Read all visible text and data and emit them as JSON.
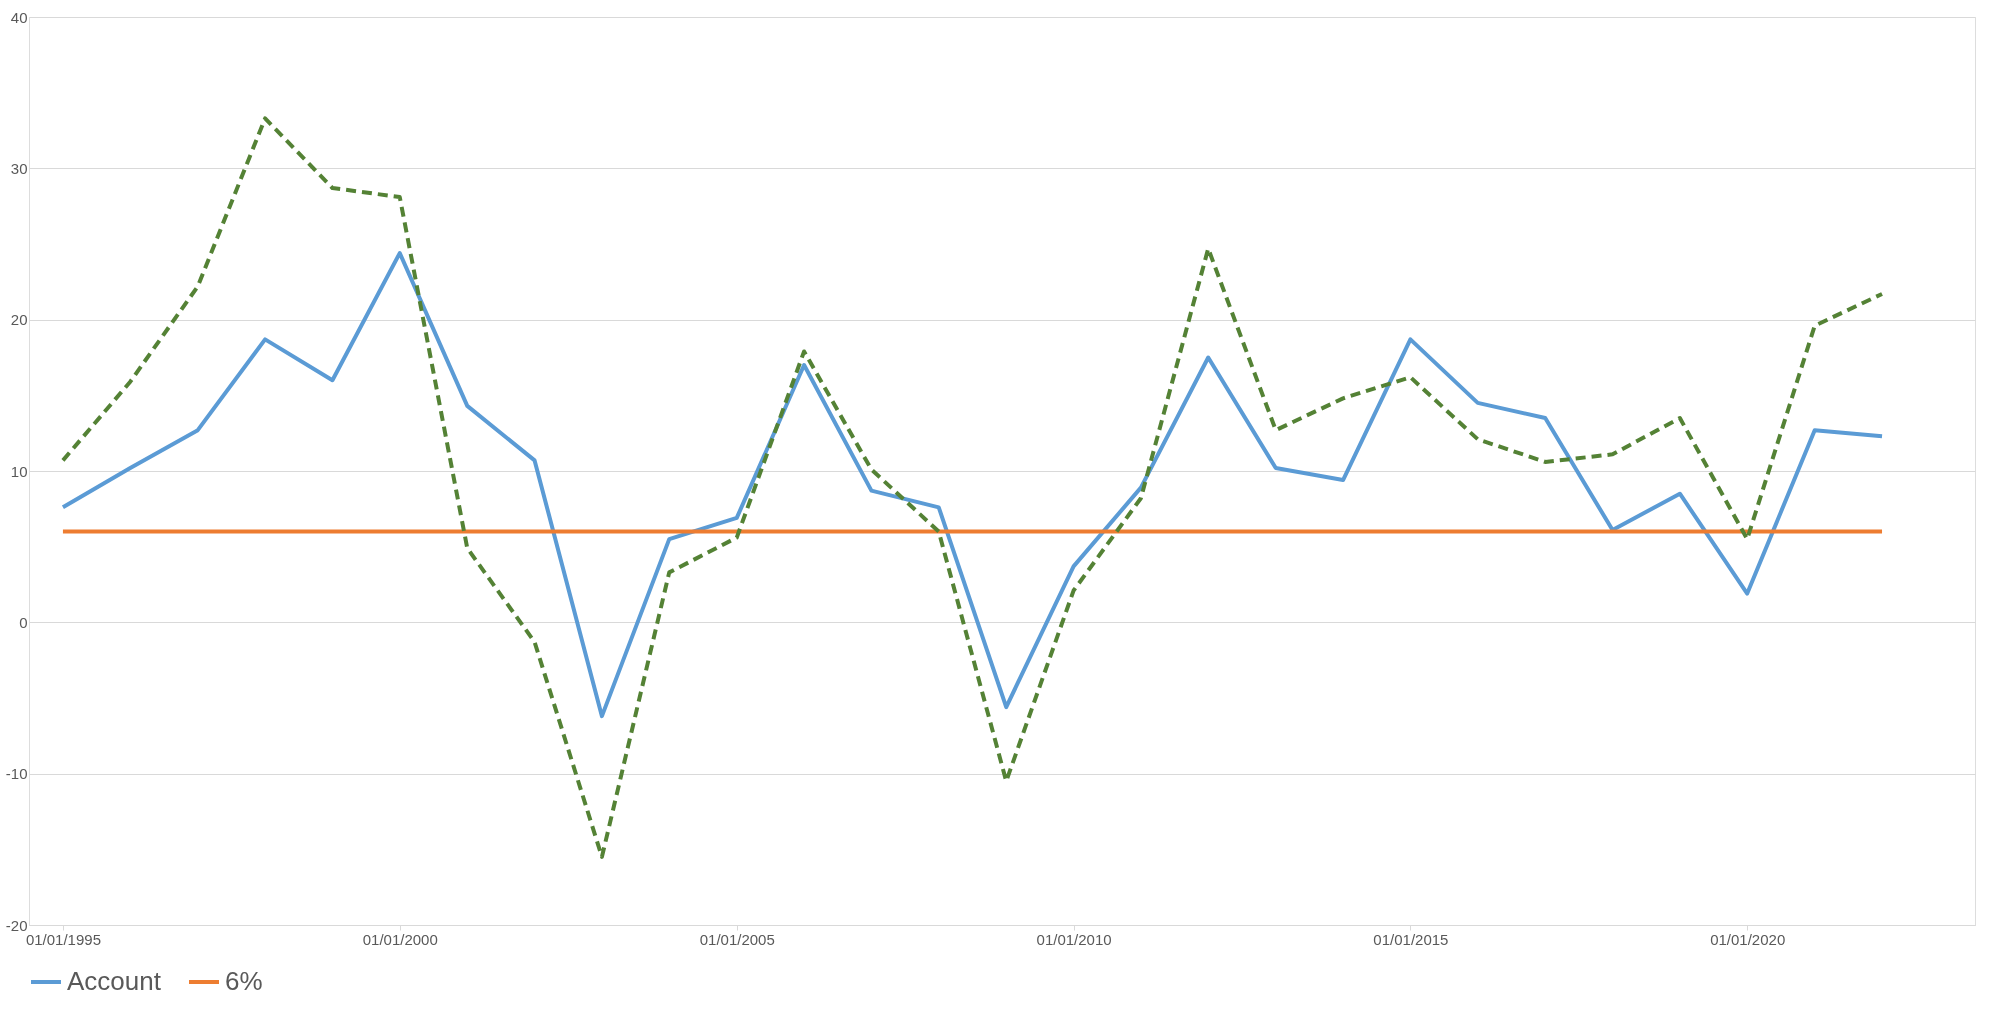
{
  "chart_data": {
    "type": "line",
    "x": [
      "1995-01-01",
      "1996-01-01",
      "1997-01-01",
      "1998-01-01",
      "1999-01-01",
      "2000-01-01",
      "2001-01-01",
      "2002-01-01",
      "2003-01-01",
      "2004-01-01",
      "2005-01-01",
      "2006-01-01",
      "2007-01-01",
      "2008-01-01",
      "2009-01-01",
      "2010-01-01",
      "2011-01-01",
      "2012-01-01",
      "2013-01-01",
      "2014-01-01",
      "2015-01-01",
      "2016-01-01",
      "2017-01-01",
      "2018-01-01",
      "2019-01-01",
      "2020-01-01",
      "2021-01-01",
      "2022-01-01"
    ],
    "series": [
      {
        "name": "Account",
        "color": "#5b9bd5",
        "line_style": "solid",
        "values": [
          7.6,
          10.2,
          12.7,
          18.7,
          16.0,
          24.4,
          14.3,
          10.7,
          -6.2,
          5.5,
          6.9,
          17.0,
          8.7,
          7.6,
          -5.6,
          3.7,
          8.9,
          17.5,
          10.2,
          9.4,
          18.7,
          14.5,
          13.5,
          6.1,
          8.5,
          1.9,
          12.7,
          12.3
        ]
      },
      {
        "name": "6%",
        "color": "#ed7d31",
        "line_style": "solid",
        "values": [
          6,
          6,
          6,
          6,
          6,
          6,
          6,
          6,
          6,
          6,
          6,
          6,
          6,
          6,
          6,
          6,
          6,
          6,
          6,
          6,
          6,
          6,
          6,
          6,
          6,
          6,
          6,
          6
        ]
      },
      {
        "color": "#548235",
        "line_style": "dashed",
        "values": [
          10.7,
          15.9,
          22.2,
          33.3,
          28.7,
          28.1,
          4.9,
          -1.3,
          -15.5,
          3.3,
          5.6,
          17.9,
          10.1,
          6.0,
          -10.5,
          2.1,
          8.2,
          24.7,
          12.7,
          14.8,
          16.2,
          12.1,
          10.6,
          11.1,
          13.5,
          5.5,
          19.6,
          21.7
        ]
      }
    ],
    "xlim": [
      "1994-07-01",
      "2023-05-20"
    ],
    "xticks": [
      {
        "value": "1995-01-01",
        "label": "01/01/1995"
      },
      {
        "value": "2000-01-01",
        "label": "01/01/2000"
      },
      {
        "value": "2005-01-01",
        "label": "01/01/2005"
      },
      {
        "value": "2010-01-01",
        "label": "01/01/2010"
      },
      {
        "value": "2015-01-01",
        "label": "01/01/2015"
      },
      {
        "value": "2020-01-01",
        "label": "01/01/2020"
      }
    ],
    "ylim": [
      -20,
      40
    ],
    "yticks": [
      -20,
      -10,
      0,
      10,
      20,
      30,
      40
    ],
    "grid": "y",
    "legend": "bottom"
  }
}
